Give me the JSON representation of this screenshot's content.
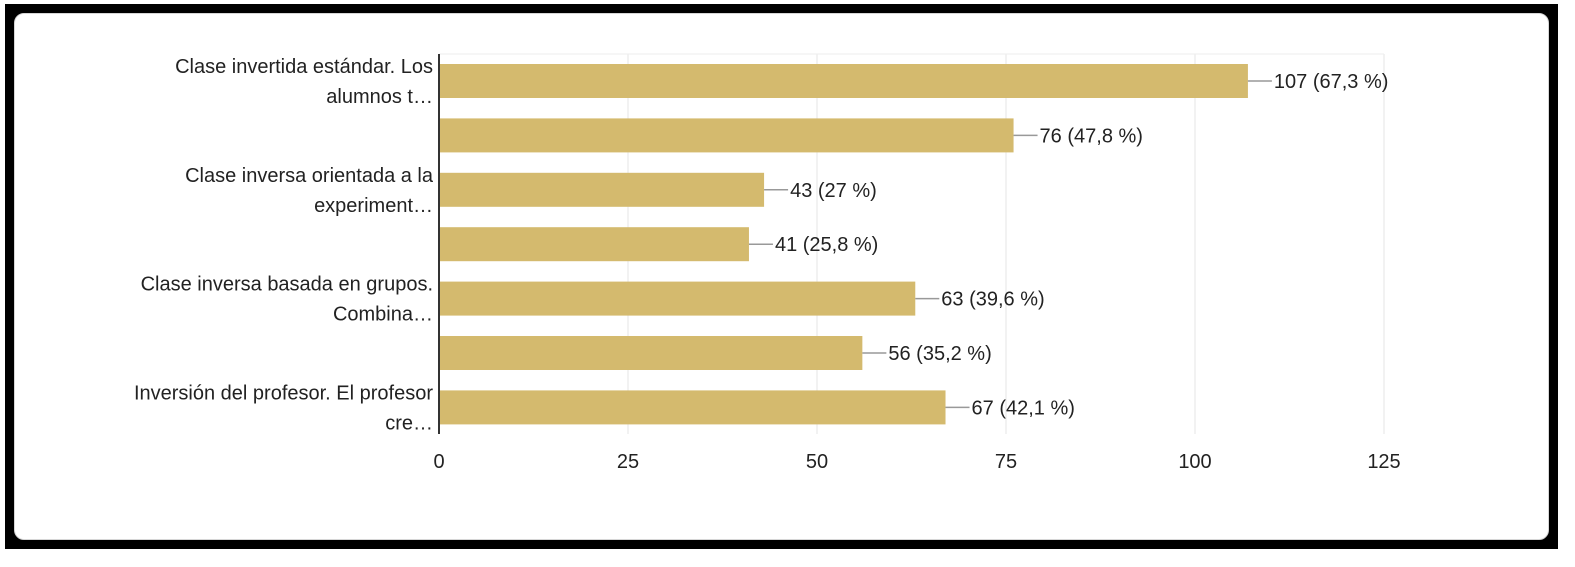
{
  "chart_data": {
    "type": "bar",
    "orientation": "horizontal",
    "bar_color": "#d4ba6e",
    "grid": true,
    "xlim": [
      0,
      125
    ],
    "xticks": [
      "0",
      "25",
      "50",
      "75",
      "100",
      "125"
    ],
    "categories": [
      [
        "Clase invertida estándar. Los",
        "alumnos t…"
      ],
      [],
      [
        "Clase inversa orientada a la",
        "experiment…"
      ],
      [],
      [
        "Clase inversa basada en grupos.",
        "Combina…"
      ],
      [],
      [
        "Inversión del profesor. El profesor",
        "cre…"
      ]
    ],
    "values": [
      107,
      76,
      43,
      41,
      63,
      56,
      67
    ],
    "data_labels": [
      "107 (67,3 %)",
      "76 (47,8 %)",
      "43 (27 %)",
      "41 (25,8 %)",
      "63 (39,6 %)",
      "56 (35,2 %)",
      "67 (42,1 %)"
    ]
  }
}
